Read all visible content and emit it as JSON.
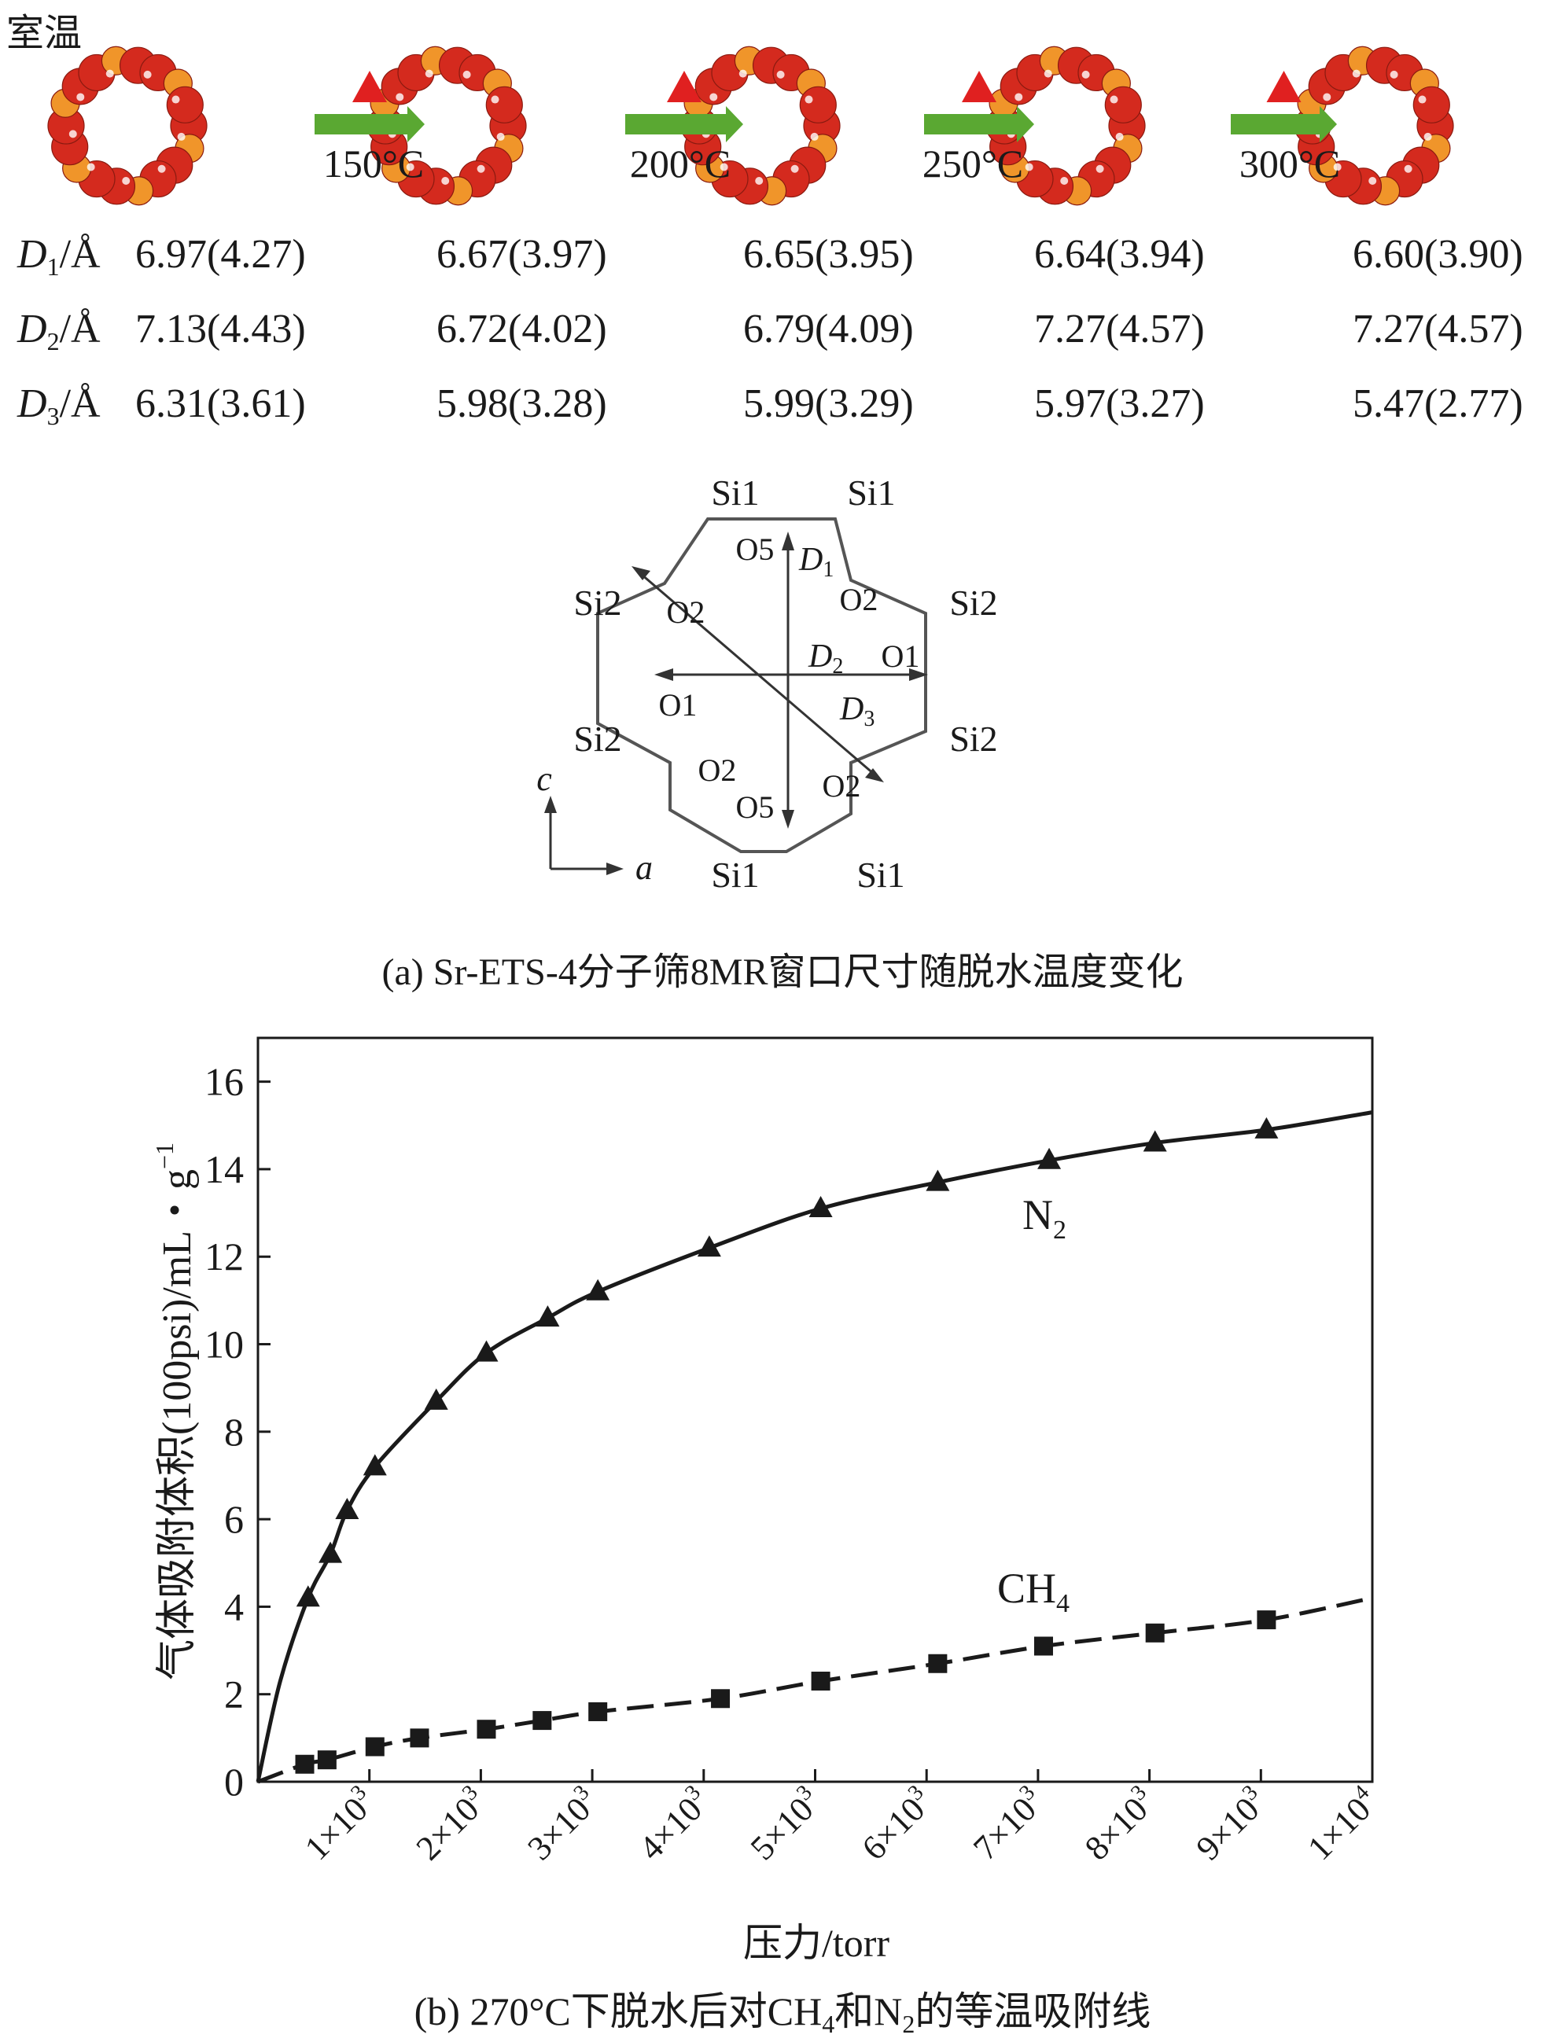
{
  "panel_a": {
    "room_temp_label": "室温",
    "heating_steps": [
      "150°C",
      "200°C",
      "250°C",
      "300°C"
    ],
    "table": [
      {
        "symbol": "D",
        "sub": "1",
        "unit": "/Å",
        "values": [
          "6.97(4.27)",
          "6.67(3.97)",
          "6.65(3.95)",
          "6.64(3.94)",
          "6.60(3.90)"
        ]
      },
      {
        "symbol": "D",
        "sub": "2",
        "unit": "/Å",
        "values": [
          "7.13(4.43)",
          "6.72(4.02)",
          "6.79(4.09)",
          "7.27(4.57)",
          "7.27(4.57)"
        ]
      },
      {
        "symbol": "D",
        "sub": "3",
        "unit": "/Å",
        "values": [
          "6.31(3.61)",
          "5.98(3.28)",
          "5.99(3.29)",
          "5.97(3.27)",
          "5.47(2.77)"
        ]
      }
    ],
    "diagram": {
      "si_labels": [
        "Si1",
        "Si1",
        "Si2",
        "Si2",
        "Si2",
        "Si2",
        "Si1",
        "Si1"
      ],
      "o_labels": [
        "O5",
        "O2",
        "O2",
        "O1",
        "O1",
        "O2",
        "O2",
        "O5"
      ],
      "d_labels": [
        {
          "symbol": "D",
          "sub": "1"
        },
        {
          "symbol": "D",
          "sub": "2"
        },
        {
          "symbol": "D",
          "sub": "3"
        }
      ],
      "axis_c": "c",
      "axis_a": "a"
    },
    "caption": "(a) Sr-ETS-4分子筛8MR窗口尺寸随脱水温度变化",
    "colors": {
      "ring_red": "#d42a1e",
      "ring_orange": "#f0952a",
      "arrow_green": "#5aa832",
      "heat_red": "#e02020"
    }
  },
  "panel_b": {
    "caption_parts": [
      "(b) 270°C下脱水后对CH",
      "4",
      "和N",
      "2",
      "的等温吸附线"
    ],
    "xlabel": "压力/torr",
    "ylabel_main": "气体吸附体积(100psi)/mL・g",
    "ylabel_sup": "−1"
  },
  "chart_data": {
    "type": "line",
    "title": "",
    "xlabel": "压力/torr",
    "ylabel": "气体吸附体积(100psi)/mL・g−1",
    "xlim": [
      0,
      10000
    ],
    "ylim": [
      0,
      17
    ],
    "x_ticks": [
      1000,
      2000,
      3000,
      4000,
      5000,
      6000,
      7000,
      8000,
      9000,
      10000
    ],
    "x_tick_labels": [
      {
        "mant": "1×10",
        "exp": "3"
      },
      {
        "mant": "2×10",
        "exp": "3"
      },
      {
        "mant": "3×10",
        "exp": "3"
      },
      {
        "mant": "4×10",
        "exp": "3"
      },
      {
        "mant": "5×10",
        "exp": "3"
      },
      {
        "mant": "6×10",
        "exp": "3"
      },
      {
        "mant": "7×10",
        "exp": "3"
      },
      {
        "mant": "8×10",
        "exp": "3"
      },
      {
        "mant": "9×10",
        "exp": "3"
      },
      {
        "mant": "1×10",
        "exp": "4"
      }
    ],
    "y_ticks": [
      0,
      2,
      4,
      6,
      8,
      10,
      12,
      14,
      16
    ],
    "grid": false,
    "series": [
      {
        "name": "N2",
        "label_main": "N",
        "label_sub": "2",
        "marker": "triangle",
        "line": "solid",
        "points": [
          [
            450,
            4.2
          ],
          [
            650,
            5.2
          ],
          [
            800,
            6.2
          ],
          [
            1050,
            7.2
          ],
          [
            1600,
            8.7
          ],
          [
            2050,
            9.8
          ],
          [
            2600,
            10.6
          ],
          [
            3050,
            11.2
          ],
          [
            4050,
            12.2
          ],
          [
            5050,
            13.1
          ],
          [
            6100,
            13.7
          ],
          [
            7100,
            14.2
          ],
          [
            8050,
            14.6
          ],
          [
            9050,
            14.9
          ]
        ],
        "curve": [
          [
            0,
            0
          ],
          [
            200,
            2.3
          ],
          [
            450,
            4.2
          ],
          [
            650,
            5.2
          ],
          [
            800,
            6.2
          ],
          [
            1050,
            7.2
          ],
          [
            1600,
            8.7
          ],
          [
            2050,
            9.8
          ],
          [
            2600,
            10.6
          ],
          [
            3050,
            11.2
          ],
          [
            4050,
            12.2
          ],
          [
            5050,
            13.1
          ],
          [
            6100,
            13.7
          ],
          [
            7100,
            14.2
          ],
          [
            8050,
            14.6
          ],
          [
            9050,
            14.9
          ],
          [
            10000,
            15.3
          ]
        ]
      },
      {
        "name": "CH4",
        "label_main": "CH",
        "label_sub": "4",
        "marker": "square",
        "line": "dashed",
        "points": [
          [
            420,
            0.4
          ],
          [
            620,
            0.5
          ],
          [
            1050,
            0.8
          ],
          [
            1450,
            1.0
          ],
          [
            2050,
            1.2
          ],
          [
            2550,
            1.4
          ],
          [
            3050,
            1.6
          ],
          [
            4150,
            1.9
          ],
          [
            5050,
            2.3
          ],
          [
            6100,
            2.7
          ],
          [
            7050,
            3.1
          ],
          [
            8050,
            3.4
          ],
          [
            9050,
            3.7
          ]
        ],
        "curve": [
          [
            0,
            0
          ],
          [
            420,
            0.4
          ],
          [
            620,
            0.5
          ],
          [
            1050,
            0.8
          ],
          [
            1450,
            1.0
          ],
          [
            2050,
            1.2
          ],
          [
            2550,
            1.4
          ],
          [
            3050,
            1.6
          ],
          [
            4150,
            1.9
          ],
          [
            5050,
            2.3
          ],
          [
            6100,
            2.7
          ],
          [
            7050,
            3.1
          ],
          [
            8050,
            3.4
          ],
          [
            9050,
            3.7
          ],
          [
            10000,
            4.2
          ]
        ]
      }
    ]
  }
}
